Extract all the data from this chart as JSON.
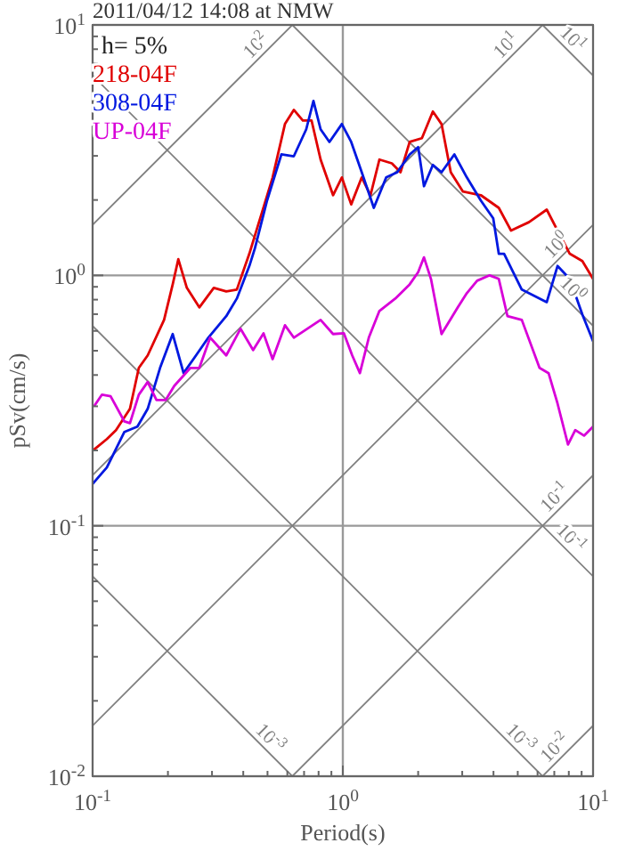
{
  "chart_data": {
    "type": "line",
    "title": "2011/04/12 14:08 at NMW",
    "xlabel": "Period(s)",
    "ylabel": "pSv(cm/s)",
    "log": "xy",
    "grid": true,
    "legend": "top left",
    "annotations": [
      "h= 5%",
      {
        "text": "10$^{1}$",
        "x": 10,
        "y": 6.283
      },
      {
        "text": "10$^{0}$",
        "x": 10,
        "y": 0.6283
      },
      {
        "text": "10$^{-1}$",
        "x": 10,
        "y": 0.06283
      },
      {
        "text": "10$^{-3}$",
        "x": 6.283,
        "y": 0.01
      },
      {
        "text": "10$^{-3}$",
        "x": 0.6283,
        "y": 0.01
      },
      {
        "text": "10$^{2}$",
        "x": 0.6283,
        "y": 10
      },
      {
        "text": "10$^{1}$",
        "x": 6.283,
        "y": 10
      },
      {
        "text": "10$^{0}$",
        "x": 10,
        "y": 1.592
      },
      {
        "text": "10$^{-1}$",
        "x": 10,
        "y": 0.1592
      },
      {
        "text": "10$^{-2}$",
        "x": 10,
        "y": 0.01592
      }
    ],
    "xlim": [
      0.1,
      10
    ],
    "ylim": [
      0.01,
      10
    ],
    "xticks": [
      {
        "value": 0.1,
        "label": "10$^{-1}$"
      },
      {
        "value": 0.2,
        "label": null
      },
      {
        "value": 0.3,
        "label": null
      },
      {
        "value": 0.4,
        "label": null
      },
      {
        "value": 0.5,
        "label": null
      },
      {
        "value": 0.6,
        "label": null
      },
      {
        "value": 0.7,
        "label": null
      },
      {
        "value": 0.8,
        "label": null
      },
      {
        "value": 0.9,
        "label": null
      },
      {
        "value": 1,
        "label": "10$^{0}$"
      },
      {
        "value": 2,
        "label": null
      },
      {
        "value": 3,
        "label": null
      },
      {
        "value": 4,
        "label": null
      },
      {
        "value": 5,
        "label": null
      },
      {
        "value": 6,
        "label": null
      },
      {
        "value": 7,
        "label": null
      },
      {
        "value": 8,
        "label": null
      },
      {
        "value": 9,
        "label": null
      },
      {
        "value": 10,
        "label": "10$^{1}$"
      }
    ],
    "yticks": [
      {
        "value": 0.01,
        "label": "10$^{-2}$"
      },
      {
        "value": 0.02,
        "label": null
      },
      {
        "value": 0.03,
        "label": null
      },
      {
        "value": 0.04,
        "label": null
      },
      {
        "value": 0.05,
        "label": null
      },
      {
        "value": 0.06,
        "label": null
      },
      {
        "value": 0.07,
        "label": null
      },
      {
        "value": 0.08,
        "label": null
      },
      {
        "value": 0.09,
        "label": null
      },
      {
        "value": 0.1,
        "label": "10$^{-1}$"
      },
      {
        "value": 0.2,
        "label": null
      },
      {
        "value": 0.3,
        "label": null
      },
      {
        "value": 0.4,
        "label": null
      },
      {
        "value": 0.5,
        "label": null
      },
      {
        "value": 0.6,
        "label": null
      },
      {
        "value": 0.7,
        "label": null
      },
      {
        "value": 0.8,
        "label": null
      },
      {
        "value": 0.9,
        "label": null
      },
      {
        "value": 1,
        "label": "10$^{0}$"
      },
      {
        "value": 2,
        "label": null
      },
      {
        "value": 3,
        "label": null
      },
      {
        "value": 4,
        "label": null
      },
      {
        "value": 5,
        "label": null
      },
      {
        "value": 6,
        "label": null
      },
      {
        "value": 7,
        "label": null
      },
      {
        "value": 8,
        "label": null
      },
      {
        "value": 9,
        "label": null
      },
      {
        "value": 10,
        "label": "10$^{1}$"
      }
    ],
    "series": [
      {
        "color": "#808080",
        "x": [
          6.283,
          10
        ],
        "values": [
          10,
          6.283
        ]
      },
      {
        "color": "#808080",
        "x": [
          0.6283,
          10
        ],
        "values": [
          10,
          0.6283
        ]
      },
      {
        "color": "#808080",
        "x": [
          0.1,
          10
        ],
        "values": [
          6.283,
          0.06283
        ]
      },
      {
        "color": "#808080",
        "x": [
          0.1,
          6.283
        ],
        "values": [
          0.6283,
          0.01
        ]
      },
      {
        "color": "#808080",
        "x": [
          0.1,
          0.6283
        ],
        "values": [
          0.06283,
          0.01
        ]
      },
      {
        "color": "#808080",
        "x": [
          0.1,
          0.6283
        ],
        "values": [
          1.592,
          10
        ]
      },
      {
        "color": "#808080",
        "x": [
          0.1,
          6.283
        ],
        "values": [
          0.1592,
          10
        ]
      },
      {
        "color": "#808080",
        "x": [
          0.1,
          10
        ],
        "values": [
          0.01592,
          1.592
        ]
      },
      {
        "color": "#808080",
        "x": [
          0.6283,
          10
        ],
        "values": [
          0.01,
          0.1592
        ]
      },
      {
        "color": "#808080",
        "x": [
          6.283,
          10
        ],
        "values": [
          0.01,
          0.01592
        ]
      },
      {
        "name": "218-04F",
        "color": "#e00000",
        "x": [
          0.101,
          0.114,
          0.124,
          0.141,
          0.153,
          0.166,
          0.193,
          0.209,
          0.22,
          0.238,
          0.267,
          0.305,
          0.342,
          0.377,
          0.423,
          0.474,
          0.524,
          0.587,
          0.637,
          0.692,
          0.75,
          0.815,
          0.914,
          0.991,
          1.08,
          1.19,
          1.29,
          1.4,
          1.57,
          1.7,
          1.85,
          2.07,
          2.29,
          2.48,
          2.7,
          3.02,
          3.56,
          4.2,
          4.7,
          5.54,
          6.53,
          7.21,
          8.07,
          9.06,
          10
        ],
        "values": [
          0.201,
          0.222,
          0.241,
          0.293,
          0.427,
          0.479,
          0.664,
          0.921,
          1.16,
          0.892,
          0.745,
          0.892,
          0.863,
          0.877,
          1.22,
          1.77,
          2.46,
          4.02,
          4.58,
          4.15,
          4.15,
          2.9,
          2.09,
          2.46,
          1.92,
          2.46,
          2.09,
          2.9,
          2.8,
          2.58,
          3.41,
          3.53,
          4.51,
          4.02,
          2.58,
          2.16,
          2.09,
          1.86,
          1.51,
          1.63,
          1.83,
          1.51,
          1.22,
          1.14,
          0.968
        ]
      },
      {
        "name": "308-04F",
        "color": "#0018e0",
        "x": [
          0.1,
          0.114,
          0.134,
          0.151,
          0.166,
          0.186,
          0.209,
          0.231,
          0.259,
          0.29,
          0.342,
          0.377,
          0.423,
          0.445,
          0.498,
          0.568,
          0.637,
          0.714,
          0.763,
          0.815,
          0.884,
          0.991,
          1.08,
          1.19,
          1.33,
          1.49,
          1.65,
          1.85,
          2.0,
          2.11,
          2.29,
          2.48,
          2.79,
          3.13,
          3.56,
          3.99,
          4.2,
          4.41,
          5.19,
          6.53,
          7.21,
          8.07,
          9.06,
          10
        ],
        "values": [
          0.147,
          0.171,
          0.237,
          0.249,
          0.293,
          0.427,
          0.583,
          0.407,
          0.479,
          0.564,
          0.687,
          0.808,
          1.09,
          1.28,
          1.99,
          3.04,
          2.99,
          3.83,
          4.97,
          3.83,
          3.41,
          4.02,
          3.41,
          2.58,
          1.86,
          2.46,
          2.58,
          3.04,
          3.25,
          2.27,
          2.76,
          2.58,
          3.04,
          2.46,
          1.99,
          1.69,
          1.22,
          1.22,
          0.877,
          0.782,
          1.09,
          0.968,
          0.698,
          0.546
        ]
      },
      {
        "name": "UP-04F",
        "color": "#d800d8",
        "x": [
          0.102,
          0.109,
          0.118,
          0.134,
          0.141,
          0.153,
          0.166,
          0.18,
          0.196,
          0.212,
          0.246,
          0.267,
          0.295,
          0.342,
          0.39,
          0.438,
          0.482,
          0.524,
          0.587,
          0.637,
          0.815,
          0.914,
          1.01,
          1.09,
          1.17,
          1.27,
          1.4,
          1.62,
          1.85,
          2.0,
          2.11,
          2.25,
          2.48,
          2.88,
          3.13,
          3.44,
          3.86,
          4.2,
          4.55,
          5.19,
          6.11,
          6.64,
          7.21,
          7.94,
          8.49,
          9.2,
          10
        ],
        "values": [
          0.303,
          0.334,
          0.329,
          0.261,
          0.257,
          0.334,
          0.375,
          0.318,
          0.318,
          0.362,
          0.427,
          0.427,
          0.564,
          0.479,
          0.612,
          0.503,
          0.587,
          0.463,
          0.632,
          0.564,
          0.664,
          0.583,
          0.587,
          0.479,
          0.407,
          0.564,
          0.721,
          0.808,
          0.921,
          1.03,
          1.18,
          0.968,
          0.583,
          0.745,
          0.849,
          0.952,
          1.0,
          0.968,
          0.687,
          0.664,
          0.427,
          0.407,
          0.308,
          0.211,
          0.241,
          0.229,
          0.249
        ]
      }
    ]
  }
}
